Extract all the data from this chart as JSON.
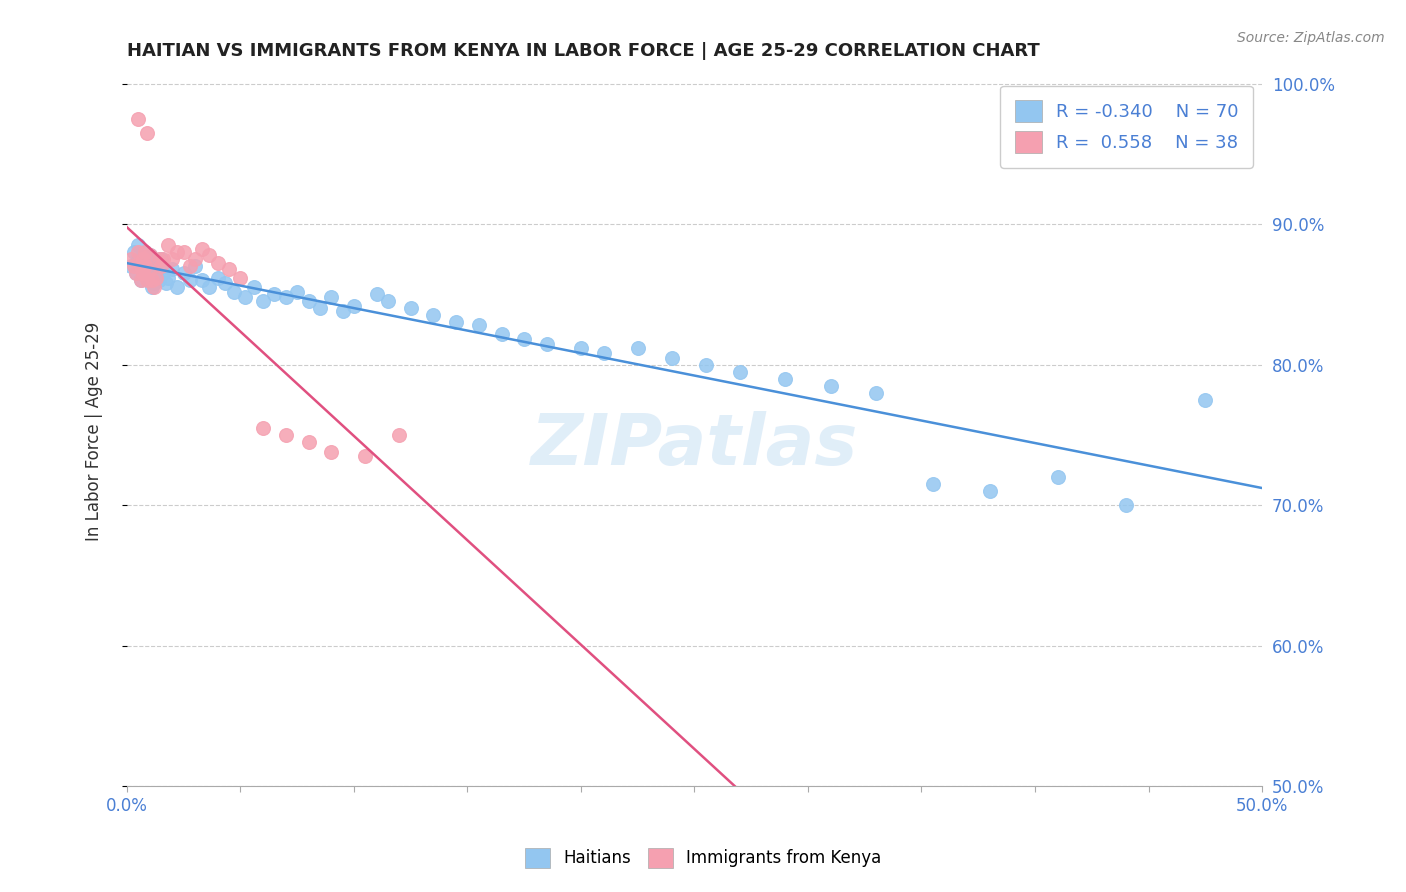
{
  "title": "HAITIAN VS IMMIGRANTS FROM KENYA IN LABOR FORCE | AGE 25-29 CORRELATION CHART",
  "source_text": "Source: ZipAtlas.com",
  "ylabel": "In Labor Force | Age 25-29",
  "xlim": [
    0.0,
    0.5
  ],
  "ylim": [
    0.5,
    1.005
  ],
  "xticks": [
    0.0,
    0.05,
    0.1,
    0.15,
    0.2,
    0.25,
    0.3,
    0.35,
    0.4,
    0.45,
    0.5
  ],
  "yticks": [
    0.5,
    0.6,
    0.7,
    0.8,
    0.9,
    1.0
  ],
  "haitian_color": "#93c6f0",
  "kenya_color": "#f5a0b0",
  "haitian_line_color": "#4a90d9",
  "kenya_line_color": "#e05080",
  "R_haitian": -0.34,
  "N_haitian": 70,
  "R_kenya": 0.558,
  "N_kenya": 38,
  "legend_label_haitian": "Haitians",
  "legend_label_kenya": "Immigrants from Kenya",
  "haitian_x": [
    0.002,
    0.003,
    0.004,
    0.005,
    0.005,
    0.006,
    0.006,
    0.007,
    0.007,
    0.008,
    0.008,
    0.009,
    0.009,
    0.01,
    0.01,
    0.01,
    0.011,
    0.011,
    0.012,
    0.012,
    0.013,
    0.014,
    0.015,
    0.016,
    0.017,
    0.018,
    0.02,
    0.022,
    0.025,
    0.028,
    0.03,
    0.033,
    0.036,
    0.04,
    0.043,
    0.047,
    0.052,
    0.056,
    0.06,
    0.065,
    0.07,
    0.075,
    0.08,
    0.085,
    0.09,
    0.095,
    0.1,
    0.11,
    0.115,
    0.125,
    0.135,
    0.145,
    0.155,
    0.165,
    0.175,
    0.185,
    0.2,
    0.21,
    0.225,
    0.24,
    0.255,
    0.27,
    0.29,
    0.31,
    0.33,
    0.355,
    0.38,
    0.41,
    0.44,
    0.475
  ],
  "haitian_y": [
    0.87,
    0.88,
    0.865,
    0.875,
    0.885,
    0.87,
    0.86,
    0.875,
    0.865,
    0.88,
    0.87,
    0.862,
    0.875,
    0.868,
    0.878,
    0.86,
    0.855,
    0.872,
    0.865,
    0.858,
    0.87,
    0.86,
    0.875,
    0.865,
    0.858,
    0.862,
    0.868,
    0.855,
    0.865,
    0.86,
    0.87,
    0.86,
    0.855,
    0.862,
    0.858,
    0.852,
    0.848,
    0.855,
    0.845,
    0.85,
    0.848,
    0.852,
    0.845,
    0.84,
    0.848,
    0.838,
    0.842,
    0.85,
    0.845,
    0.84,
    0.835,
    0.83,
    0.828,
    0.822,
    0.818,
    0.815,
    0.812,
    0.808,
    0.812,
    0.805,
    0.8,
    0.795,
    0.79,
    0.785,
    0.78,
    0.715,
    0.71,
    0.72,
    0.7,
    0.775
  ],
  "kenya_x": [
    0.002,
    0.003,
    0.004,
    0.005,
    0.005,
    0.006,
    0.006,
    0.007,
    0.007,
    0.008,
    0.008,
    0.009,
    0.009,
    0.01,
    0.01,
    0.011,
    0.012,
    0.013,
    0.014,
    0.015,
    0.016,
    0.018,
    0.02,
    0.022,
    0.025,
    0.028,
    0.03,
    0.033,
    0.036,
    0.04,
    0.045,
    0.05,
    0.06,
    0.07,
    0.08,
    0.09,
    0.105,
    0.12
  ],
  "kenya_y": [
    0.875,
    0.87,
    0.865,
    0.88,
    0.975,
    0.87,
    0.86,
    0.875,
    0.865,
    0.88,
    0.87,
    0.86,
    0.965,
    0.868,
    0.878,
    0.86,
    0.855,
    0.862,
    0.875,
    0.87,
    0.875,
    0.885,
    0.875,
    0.88,
    0.88,
    0.87,
    0.875,
    0.882,
    0.878,
    0.872,
    0.868,
    0.862,
    0.755,
    0.75,
    0.745,
    0.738,
    0.735,
    0.75
  ]
}
